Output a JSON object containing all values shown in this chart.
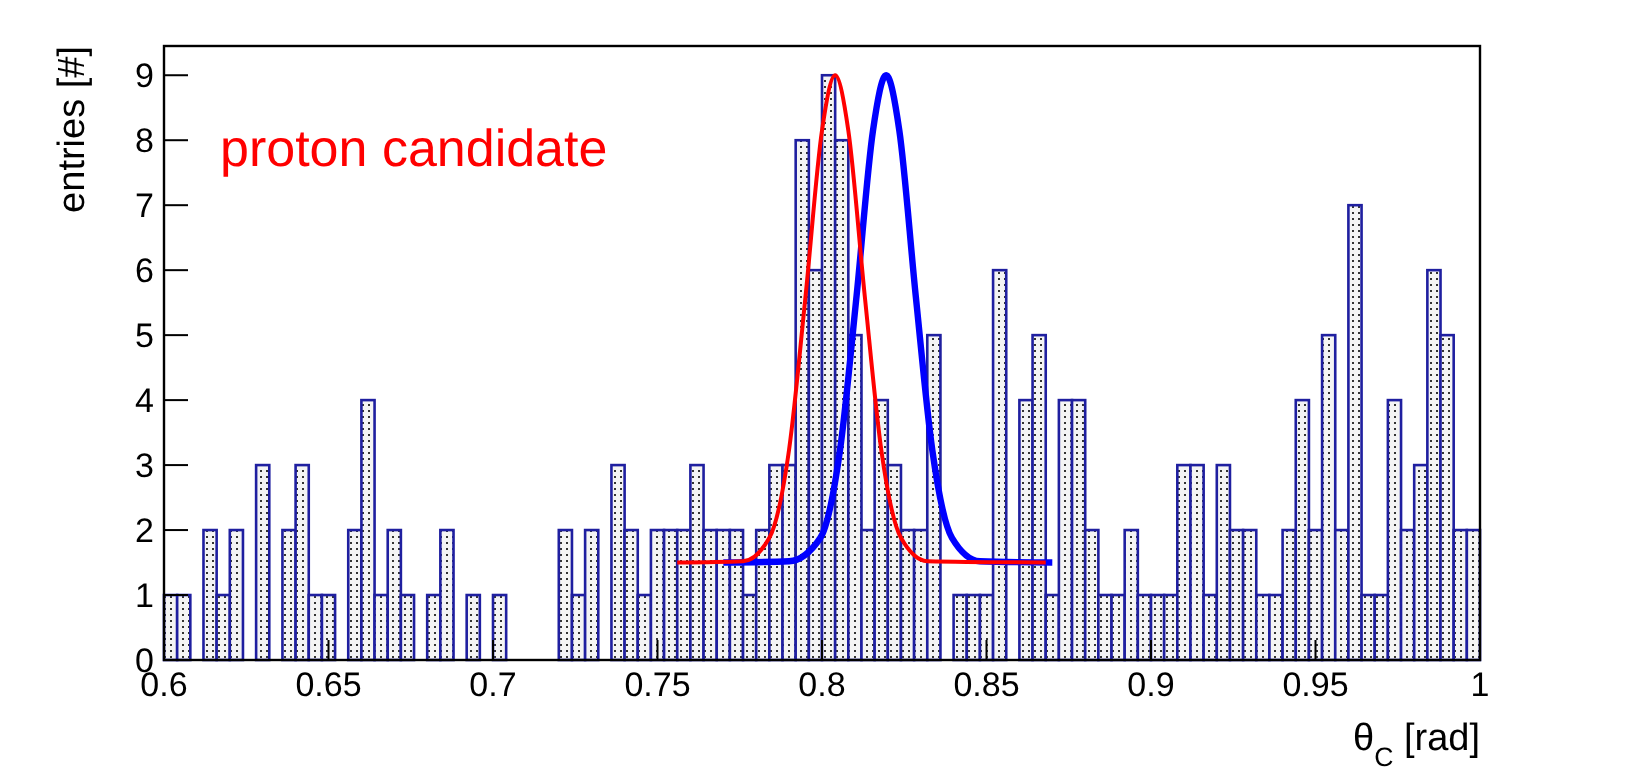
{
  "chart_data": {
    "type": "histogram",
    "xlabel": "θ$_{C}$ [rad]",
    "ylabel": "entries [#]",
    "annotations": [
      "proton candidate"
    ],
    "xlim": [
      0.6,
      1
    ],
    "ylim": [
      0,
      9.45
    ],
    "xticks": [
      {
        "value": 0.6,
        "label": "0.6"
      },
      {
        "value": 0.65,
        "label": "0.65"
      },
      {
        "value": 0.7,
        "label": "0.7"
      },
      {
        "value": 0.75,
        "label": "0.75"
      },
      {
        "value": 0.8,
        "label": "0.8"
      },
      {
        "value": 0.85,
        "label": "0.85"
      },
      {
        "value": 0.9,
        "label": "0.9"
      },
      {
        "value": 0.95,
        "label": "0.95"
      },
      {
        "value": 1,
        "label": "1"
      }
    ],
    "yticks": [
      0,
      1,
      2,
      3,
      4,
      5,
      6,
      7,
      8,
      9
    ],
    "grid": false,
    "color": "#1f1fa0",
    "bins": [
      0.6,
      0.604,
      0.608,
      0.612,
      0.616,
      0.62,
      0.624,
      0.628,
      0.632,
      0.636,
      0.64,
      0.644,
      0.648,
      0.652,
      0.656,
      0.66,
      0.664,
      0.668,
      0.672,
      0.676,
      0.68,
      0.684,
      0.688,
      0.692,
      0.696,
      0.7,
      0.704,
      0.708,
      0.712,
      0.716,
      0.72,
      0.724,
      0.728,
      0.732,
      0.736,
      0.74,
      0.744,
      0.748,
      0.752,
      0.756,
      0.76,
      0.764,
      0.768,
      0.772,
      0.776,
      0.78,
      0.784,
      0.788,
      0.792,
      0.796,
      0.8,
      0.804,
      0.808,
      0.812,
      0.816,
      0.82,
      0.824,
      0.828,
      0.832,
      0.836,
      0.84,
      0.844,
      0.848,
      0.852,
      0.856,
      0.86,
      0.864,
      0.868,
      0.872,
      0.876,
      0.88,
      0.884,
      0.888,
      0.892,
      0.896,
      0.9,
      0.904,
      0.908,
      0.912,
      0.916,
      0.92,
      0.924,
      0.928,
      0.932,
      0.936,
      0.94,
      0.944,
      0.948,
      0.952,
      0.956,
      0.96,
      0.964,
      0.968,
      0.972,
      0.976,
      0.98,
      0.984,
      0.988,
      0.992,
      0.996,
      1.0
    ],
    "values": [
      1,
      1,
      0,
      2,
      1,
      2,
      0,
      3,
      0,
      2,
      3,
      1,
      1,
      0,
      2,
      4,
      1,
      2,
      1,
      0,
      1,
      2,
      0,
      1,
      0,
      1,
      0,
      0,
      0,
      0,
      2,
      1,
      2,
      0,
      3,
      2,
      1,
      2,
      2,
      2,
      3,
      2,
      2,
      2,
      1,
      2,
      3,
      3,
      8,
      6,
      9,
      8,
      5,
      2,
      4,
      3,
      2,
      2,
      5,
      0,
      1,
      1,
      1,
      6,
      0,
      4,
      5,
      1,
      4,
      4,
      2,
      1,
      1,
      2,
      1,
      1,
      1,
      3,
      3,
      1,
      3,
      2,
      2,
      1,
      1,
      2,
      4,
      2,
      5,
      2,
      7,
      1,
      1,
      4,
      2,
      3,
      6,
      5,
      2,
      2
    ],
    "series": [
      {
        "type": "line",
        "color": "#ff0000",
        "x": [
          0.756,
          0.776,
          0.784,
          0.79,
          0.795,
          0.8,
          0.804,
          0.808,
          0.813,
          0.818,
          0.824,
          0.832,
          0.868
        ],
        "values": [
          1.5,
          1.52,
          1.88,
          3.24,
          5.6,
          8.15,
          9,
          8.15,
          5.6,
          3.24,
          1.88,
          1.52,
          1.5
        ]
      },
      {
        "type": "line",
        "color": "#0000ff",
        "x": [
          0.77,
          0.79,
          0.7995,
          0.8055,
          0.8105,
          0.8155,
          0.8195,
          0.8235,
          0.8285,
          0.8335,
          0.8395,
          0.848,
          0.87
        ],
        "values": [
          1.5,
          1.52,
          1.88,
          3.24,
          5.6,
          8.15,
          9,
          8.15,
          5.6,
          3.24,
          1.88,
          1.52,
          1.5
        ]
      }
    ],
    "marker": "none",
    "line_style": "solid"
  }
}
